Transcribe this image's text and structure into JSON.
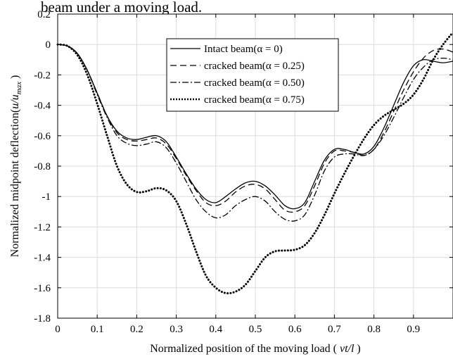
{
  "header_text": "beam under a moving load.",
  "chart_data": {
    "type": "line",
    "title": "",
    "xlabel_prefix": "Normalized position of the moving load (",
    "xlabel_var": " vt/l ",
    "xlabel_suffix": ")",
    "ylabel_prefix": "Normalized midpoint deflection(",
    "ylabel_var": "u/u",
    "ylabel_sub": "max",
    "ylabel_suffix": " )",
    "xlim": [
      0,
      1
    ],
    "ylim": [
      -1.8,
      0.2
    ],
    "xticks": [
      "0",
      "0.1",
      "0.2",
      "0.3",
      "0.4",
      "0.5",
      "0.6",
      "0.7",
      "0.8",
      "0.9"
    ],
    "yticks": [
      "0.2",
      "0",
      "-0.2",
      "-0.4",
      "-0.6",
      "-0.8",
      "-1",
      "-1.2",
      "-1.4",
      "-1.6",
      "-1.8"
    ],
    "grid": true,
    "legend_position": "top-center",
    "x": [
      0,
      0.025,
      0.05,
      0.075,
      0.1,
      0.125,
      0.15,
      0.175,
      0.2,
      0.225,
      0.25,
      0.275,
      0.3,
      0.325,
      0.35,
      0.375,
      0.4,
      0.425,
      0.45,
      0.475,
      0.5,
      0.525,
      0.55,
      0.575,
      0.6,
      0.625,
      0.65,
      0.675,
      0.7,
      0.725,
      0.75,
      0.775,
      0.8,
      0.825,
      0.85,
      0.875,
      0.9,
      0.925,
      0.95,
      0.975,
      1.0
    ],
    "series": [
      {
        "name": "Intact beam(α = 0)",
        "style": "solid",
        "values": [
          0,
          -0.01,
          -0.06,
          -0.17,
          -0.32,
          -0.47,
          -0.57,
          -0.615,
          -0.625,
          -0.61,
          -0.6,
          -0.64,
          -0.74,
          -0.85,
          -0.95,
          -1.02,
          -1.04,
          -1.0,
          -0.95,
          -0.91,
          -0.9,
          -0.93,
          -0.99,
          -1.06,
          -1.08,
          -1.04,
          -0.9,
          -0.76,
          -0.69,
          -0.69,
          -0.71,
          -0.72,
          -0.67,
          -0.55,
          -0.4,
          -0.25,
          -0.14,
          -0.1,
          -0.11,
          -0.12,
          -0.11
        ]
      },
      {
        "name": "cracked beam(α = 0.25)",
        "style": "dashed",
        "values": [
          0,
          -0.01,
          -0.06,
          -0.17,
          -0.32,
          -0.47,
          -0.58,
          -0.625,
          -0.635,
          -0.625,
          -0.615,
          -0.655,
          -0.75,
          -0.86,
          -0.96,
          -1.04,
          -1.06,
          -1.03,
          -0.97,
          -0.93,
          -0.92,
          -0.95,
          -1.02,
          -1.09,
          -1.1,
          -1.06,
          -0.93,
          -0.78,
          -0.7,
          -0.7,
          -0.71,
          -0.73,
          -0.69,
          -0.58,
          -0.44,
          -0.3,
          -0.18,
          -0.09,
          -0.04,
          -0.03,
          -0.05
        ]
      },
      {
        "name": "cracked beam(α = 0.50)",
        "style": "dashdot",
        "values": [
          0,
          -0.01,
          -0.06,
          -0.17,
          -0.33,
          -0.48,
          -0.6,
          -0.65,
          -0.665,
          -0.655,
          -0.64,
          -0.68,
          -0.78,
          -0.9,
          -1.02,
          -1.1,
          -1.14,
          -1.12,
          -1.06,
          -1.02,
          -1.0,
          -1.03,
          -1.1,
          -1.15,
          -1.16,
          -1.12,
          -0.99,
          -0.83,
          -0.74,
          -0.72,
          -0.72,
          -0.73,
          -0.69,
          -0.6,
          -0.48,
          -0.35,
          -0.23,
          -0.15,
          -0.1,
          -0.09,
          -0.1
        ]
      },
      {
        "name": "cracked beam(α = 0.75)",
        "style": "dotted",
        "values": [
          0,
          -0.01,
          -0.07,
          -0.2,
          -0.39,
          -0.6,
          -0.8,
          -0.92,
          -0.97,
          -0.965,
          -0.945,
          -0.96,
          -1.03,
          -1.18,
          -1.36,
          -1.52,
          -1.6,
          -1.635,
          -1.625,
          -1.58,
          -1.49,
          -1.4,
          -1.36,
          -1.355,
          -1.35,
          -1.32,
          -1.24,
          -1.12,
          -0.98,
          -0.85,
          -0.73,
          -0.62,
          -0.53,
          -0.47,
          -0.43,
          -0.39,
          -0.33,
          -0.23,
          -0.1,
          -0.0,
          0.08
        ]
      }
    ]
  }
}
